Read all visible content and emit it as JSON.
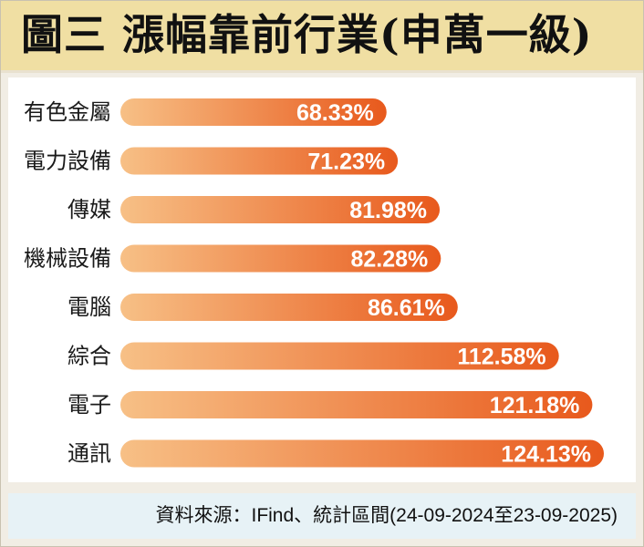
{
  "title": "圖三  漲幅靠前行業(申萬一級)",
  "source": "資料來源：IFind、統計區間(24-09-2024至23-09-2025)",
  "colors": {
    "bar_start": "#f7c086",
    "bar_end": "#e8591c",
    "title_bg": "#f0dfa3",
    "footer_bg": "#e7f2f6"
  },
  "chart_data": {
    "type": "bar",
    "orientation": "horizontal",
    "categories": [
      "有色金屬",
      "電力設備",
      "傳媒",
      "機械設備",
      "電腦",
      "綜合",
      "電子",
      "通訊"
    ],
    "values": [
      68.33,
      71.23,
      81.98,
      82.28,
      86.61,
      112.58,
      121.18,
      124.13
    ],
    "value_labels": [
      "68.33%",
      "71.23%",
      "81.98%",
      "82.28%",
      "86.61%",
      "112.58%",
      "121.18%",
      "124.13%"
    ],
    "title": "",
    "xlabel": "",
    "ylabel": "",
    "xlim": [
      0,
      124.13
    ],
    "grid": false,
    "legend": "none"
  }
}
